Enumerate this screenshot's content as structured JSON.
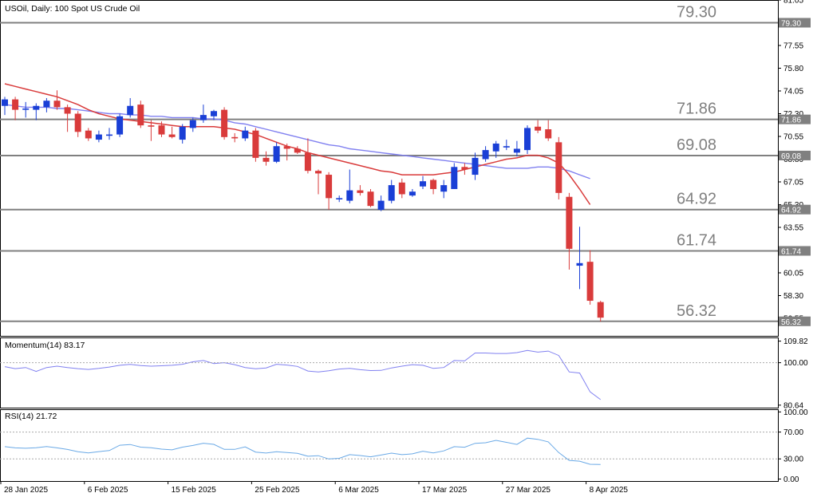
{
  "chart_data": [
    {
      "type": "candlestick",
      "title": "USOil, Daily:  100 Spot US Crude Oil",
      "y_ticks": [
        "81.05",
        "79.30",
        "77.55",
        "75.80",
        "74.05",
        "72.30",
        "70.55",
        "68.80",
        "67.05",
        "65.30",
        "63.55",
        "61.80",
        "60.05",
        "58.30",
        "56.55"
      ],
      "y_tick_values": [
        81.05,
        79.3,
        77.55,
        75.8,
        74.05,
        72.3,
        70.55,
        68.8,
        67.05,
        65.3,
        63.55,
        61.8,
        60.05,
        58.3,
        56.55
      ],
      "ylim": [
        55.2,
        81.05
      ],
      "x_ticks": [
        "28 Jan 2025",
        "6 Feb 2025",
        "15 Feb 2025",
        "25 Feb 2025",
        "6 Mar 2025",
        "17 Mar 2025",
        "27 Mar 2025",
        "8 Apr 2025"
      ],
      "x_tick_index": [
        0,
        8,
        16,
        24,
        32,
        40,
        48,
        56
      ],
      "levels": [
        {
          "label": "79.30",
          "value": 79.3
        },
        {
          "label": "71.86",
          "value": 71.86
        },
        {
          "label": "69.08",
          "value": 69.08
        },
        {
          "label": "64.92",
          "value": 64.92
        },
        {
          "label": "61.74",
          "value": 61.74
        },
        {
          "label": "56.32",
          "value": 56.32
        }
      ],
      "candles": [
        {
          "o": 72.9,
          "h": 73.6,
          "l": 72.2,
          "c": 73.4
        },
        {
          "o": 73.4,
          "h": 73.6,
          "l": 71.8,
          "c": 72.6
        },
        {
          "o": 72.6,
          "h": 73.2,
          "l": 72.0,
          "c": 72.7
        },
        {
          "o": 72.6,
          "h": 73.1,
          "l": 71.8,
          "c": 72.9
        },
        {
          "o": 72.8,
          "h": 73.5,
          "l": 72.4,
          "c": 73.3
        },
        {
          "o": 73.3,
          "h": 74.1,
          "l": 72.6,
          "c": 72.8
        },
        {
          "o": 72.8,
          "h": 73.0,
          "l": 70.9,
          "c": 72.3
        },
        {
          "o": 72.3,
          "h": 72.5,
          "l": 70.5,
          "c": 70.9
        },
        {
          "o": 71.0,
          "h": 71.2,
          "l": 70.2,
          "c": 70.4
        },
        {
          "o": 70.3,
          "h": 71.0,
          "l": 70.1,
          "c": 70.7
        },
        {
          "o": 70.6,
          "h": 71.2,
          "l": 70.3,
          "c": 70.7
        },
        {
          "o": 70.7,
          "h": 72.3,
          "l": 70.5,
          "c": 72.1
        },
        {
          "o": 72.2,
          "h": 73.5,
          "l": 72.0,
          "c": 72.9
        },
        {
          "o": 73.0,
          "h": 73.3,
          "l": 71.2,
          "c": 71.4
        },
        {
          "o": 71.4,
          "h": 71.8,
          "l": 70.2,
          "c": 71.3
        },
        {
          "o": 71.4,
          "h": 71.7,
          "l": 70.5,
          "c": 70.7
        },
        {
          "o": 70.7,
          "h": 71.3,
          "l": 70.4,
          "c": 70.5
        },
        {
          "o": 70.3,
          "h": 71.5,
          "l": 70.0,
          "c": 71.3
        },
        {
          "o": 71.2,
          "h": 72.0,
          "l": 70.9,
          "c": 71.8
        },
        {
          "o": 71.8,
          "h": 73.0,
          "l": 71.6,
          "c": 72.2
        },
        {
          "o": 72.1,
          "h": 72.6,
          "l": 71.8,
          "c": 72.5
        },
        {
          "o": 72.6,
          "h": 72.8,
          "l": 70.3,
          "c": 70.5
        },
        {
          "o": 70.5,
          "h": 70.8,
          "l": 70.1,
          "c": 70.4
        },
        {
          "o": 70.4,
          "h": 71.3,
          "l": 70.2,
          "c": 71.0
        },
        {
          "o": 71.0,
          "h": 71.2,
          "l": 68.6,
          "c": 68.9
        },
        {
          "o": 68.9,
          "h": 69.4,
          "l": 68.3,
          "c": 68.6
        },
        {
          "o": 68.6,
          "h": 70.1,
          "l": 68.5,
          "c": 69.8
        },
        {
          "o": 69.8,
          "h": 70.0,
          "l": 68.7,
          "c": 69.6
        },
        {
          "o": 69.6,
          "h": 69.8,
          "l": 69.2,
          "c": 69.3
        },
        {
          "o": 69.3,
          "h": 70.4,
          "l": 67.7,
          "c": 67.9
        },
        {
          "o": 67.9,
          "h": 68.0,
          "l": 66.1,
          "c": 67.7
        },
        {
          "o": 67.6,
          "h": 67.8,
          "l": 64.9,
          "c": 65.8
        },
        {
          "o": 65.7,
          "h": 66.0,
          "l": 65.5,
          "c": 65.8
        },
        {
          "o": 65.6,
          "h": 68.0,
          "l": 65.4,
          "c": 66.4
        },
        {
          "o": 66.4,
          "h": 66.8,
          "l": 66.0,
          "c": 66.2
        },
        {
          "o": 66.3,
          "h": 66.5,
          "l": 65.1,
          "c": 65.2
        },
        {
          "o": 64.9,
          "h": 66.0,
          "l": 64.8,
          "c": 65.6
        },
        {
          "o": 65.6,
          "h": 67.2,
          "l": 65.4,
          "c": 66.8
        },
        {
          "o": 67.0,
          "h": 67.3,
          "l": 65.8,
          "c": 66.1
        },
        {
          "o": 66.0,
          "h": 66.5,
          "l": 65.9,
          "c": 66.3
        },
        {
          "o": 66.7,
          "h": 67.5,
          "l": 66.5,
          "c": 67.1
        },
        {
          "o": 67.2,
          "h": 67.3,
          "l": 66.1,
          "c": 66.5
        },
        {
          "o": 66.3,
          "h": 67.2,
          "l": 65.8,
          "c": 66.8
        },
        {
          "o": 66.5,
          "h": 68.5,
          "l": 66.5,
          "c": 68.2
        },
        {
          "o": 68.2,
          "h": 68.5,
          "l": 67.6,
          "c": 68.0
        },
        {
          "o": 67.6,
          "h": 69.3,
          "l": 67.2,
          "c": 68.9
        },
        {
          "o": 68.8,
          "h": 69.8,
          "l": 68.6,
          "c": 69.5
        },
        {
          "o": 69.4,
          "h": 70.2,
          "l": 68.9,
          "c": 70.0
        },
        {
          "o": 69.7,
          "h": 70.3,
          "l": 69.5,
          "c": 69.8
        },
        {
          "o": 69.3,
          "h": 70.2,
          "l": 69.0,
          "c": 69.6
        },
        {
          "o": 69.5,
          "h": 71.4,
          "l": 69.2,
          "c": 71.2
        },
        {
          "o": 71.3,
          "h": 71.8,
          "l": 70.8,
          "c": 71.0
        },
        {
          "o": 71.1,
          "h": 71.8,
          "l": 70.2,
          "c": 70.4
        },
        {
          "o": 70.1,
          "h": 70.5,
          "l": 65.7,
          "c": 66.2
        },
        {
          "o": 65.9,
          "h": 66.2,
          "l": 60.3,
          "c": 61.9
        },
        {
          "o": 60.6,
          "h": 63.6,
          "l": 58.8,
          "c": 60.8
        },
        {
          "o": 60.9,
          "h": 61.8,
          "l": 57.6,
          "c": 57.9
        },
        {
          "o": 57.8,
          "h": 57.9,
          "l": 56.3,
          "c": 56.6
        }
      ],
      "ma_red": [
        74.6,
        74.4,
        74.2,
        74.0,
        73.8,
        73.6,
        73.3,
        73.0,
        72.6,
        72.3,
        72.1,
        71.9,
        71.8,
        71.7,
        71.6,
        71.5,
        71.4,
        71.3,
        71.3,
        71.3,
        71.3,
        71.2,
        71.1,
        70.9,
        70.7,
        70.4,
        70.1,
        69.8,
        69.6,
        69.3,
        69.1,
        68.9,
        68.7,
        68.5,
        68.3,
        68.1,
        67.9,
        67.8,
        67.6,
        67.6,
        67.6,
        67.6,
        67.7,
        67.8,
        68.0,
        68.2,
        68.4,
        68.6,
        68.8,
        68.9,
        69.1,
        69.1,
        68.9,
        68.5,
        67.6,
        66.5,
        65.3
      ],
      "ma_blue": [
        73.0,
        72.9,
        72.8,
        72.8,
        72.8,
        72.7,
        72.7,
        72.6,
        72.5,
        72.4,
        72.3,
        72.3,
        72.2,
        72.2,
        72.1,
        72.1,
        72.0,
        72.0,
        72.0,
        71.9,
        71.9,
        71.8,
        71.6,
        71.5,
        71.3,
        71.1,
        70.9,
        70.7,
        70.5,
        70.3,
        70.1,
        69.9,
        69.8,
        69.6,
        69.5,
        69.4,
        69.3,
        69.2,
        69.1,
        69.0,
        68.9,
        68.8,
        68.7,
        68.6,
        68.5,
        68.4,
        68.3,
        68.2,
        68.1,
        68.1,
        68.1,
        68.2,
        68.2,
        68.1,
        67.9,
        67.6,
        67.3
      ],
      "colors": {
        "up": "#1a3fd6",
        "down": "#d93b3b",
        "ma_red": "#d93b3b",
        "ma_blue": "#8080f0",
        "level_line": "#808080",
        "level_text": "#808080"
      }
    },
    {
      "type": "line",
      "title": "Momentum(14) 83.17",
      "y_ticks": [
        "109.82",
        "100.00",
        "80.64"
      ],
      "y_tick_values": [
        109.82,
        100.0,
        80.64
      ],
      "ylim": [
        79.5,
        111.5
      ],
      "series": [
        {
          "values": [
            98.2,
            97.3,
            97.8,
            96.0,
            97.8,
            98.4,
            97.8,
            97.3,
            96.9,
            97.4,
            98.0,
            98.8,
            99.2,
            98.7,
            98.4,
            98.6,
            98.8,
            99.3,
            100.4,
            101.0,
            99.6,
            100.0,
            99.1,
            97.8,
            97.2,
            97.6,
            99.3,
            98.9,
            98.3,
            96.2,
            95.8,
            96.3,
            97.1,
            97.4,
            96.8,
            96.4,
            96.5,
            97.6,
            98.4,
            99.1,
            98.8,
            97.4,
            97.8,
            101.0,
            100.8,
            104.4,
            104.4,
            104.2,
            104.2,
            104.6,
            105.6,
            104.8,
            105.3,
            103.3,
            95.8,
            95.3,
            86.7,
            83.17
          ]
        }
      ],
      "colors": {
        "line": "#8080f0"
      }
    },
    {
      "type": "line",
      "title": "RSI(14) 21.72",
      "y_ticks": [
        "100.00",
        "70.00",
        "30.00",
        "0.00"
      ],
      "y_tick_values": [
        100,
        70,
        30,
        0
      ],
      "ylim": [
        -3,
        104
      ],
      "levels": [
        70,
        30
      ],
      "series": [
        {
          "values": [
            48.2,
            46.4,
            45.9,
            46.6,
            48.5,
            46.4,
            44.1,
            40.8,
            38.9,
            40.9,
            42.4,
            50.4,
            51.5,
            47.5,
            46.6,
            44.6,
            43.5,
            47.5,
            50.0,
            53.4,
            51.7,
            44.2,
            44.2,
            47.9,
            40.2,
            38.7,
            40.6,
            39.6,
            38.3,
            34.0,
            34.8,
            29.9,
            30.9,
            36.4,
            35.1,
            33.1,
            35.8,
            38.6,
            36.4,
            37.6,
            41.5,
            39.0,
            41.9,
            48.2,
            47.4,
            53.2,
            54.1,
            57.6,
            54.7,
            51.6,
            61.0,
            59.2,
            55.4,
            39.5,
            27.8,
            26.6,
            22.0,
            21.72
          ]
        }
      ],
      "colors": {
        "line": "#6aa9e6",
        "level_line": "#aaaaaa"
      }
    }
  ]
}
